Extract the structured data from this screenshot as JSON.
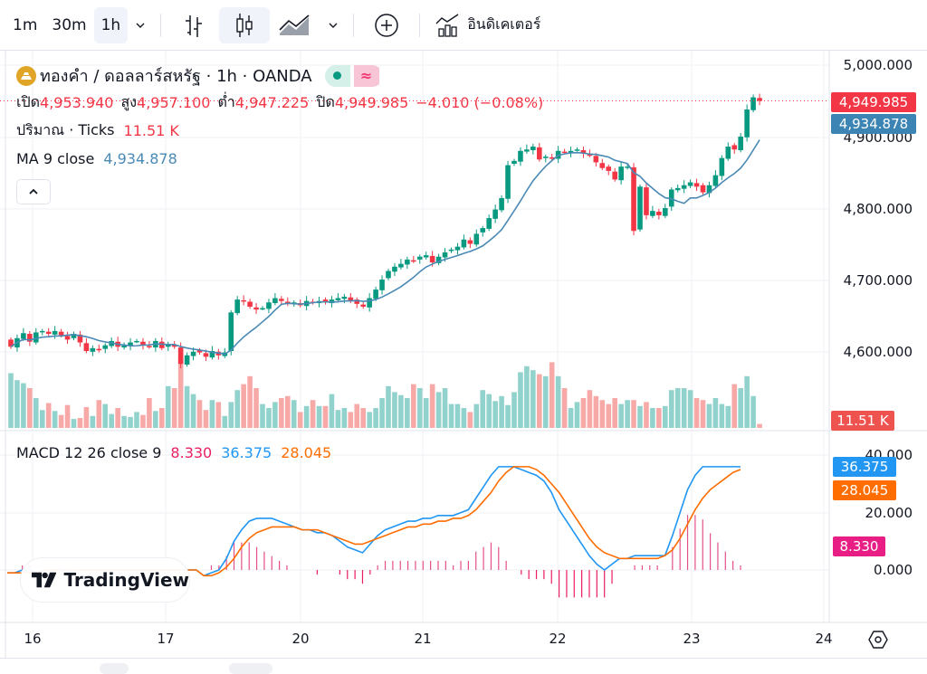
{
  "toolbar": {
    "intervals": [
      "1m",
      "30m",
      "1h"
    ],
    "active_interval": "1h",
    "indicators_label": "อินดิเคเตอร์"
  },
  "symbol": {
    "title": "ทองคำ / ดอลลาร์สหรัฐ · 1h · OANDA",
    "ohlc": {
      "open_label": "เปิด",
      "open": "4,953.940",
      "high_label": "สูง",
      "high": "4,957.100",
      "low_label": "ต่ำ",
      "low": "4,947.225",
      "close_label": "ปิด",
      "close": "4,949.985",
      "change": "−4.010 (−0.08%)"
    },
    "volume_label": "ปริมาณ · Ticks",
    "volume_value": "11.51 K",
    "ma_label": "MA 9 close",
    "ma_value": "4,934.878"
  },
  "macd": {
    "label": "MACD 12 26 close 9",
    "histogram": "8.330",
    "macd": "36.375",
    "signal": "28.045"
  },
  "price_axis": [
    "5,000.000",
    "4,900.000",
    "4,800.000",
    "4,700.000",
    "4,600.000"
  ],
  "macd_axis": [
    "40.000",
    "20.000",
    "0.000"
  ],
  "price_tags": {
    "last": "4,949.985",
    "ma": "4,934.878",
    "volume": "11.51 K",
    "macd": "36.375",
    "signal": "28.045",
    "hist": "8.330"
  },
  "time_axis": [
    "16",
    "17",
    "20",
    "21",
    "22",
    "23",
    "24"
  ],
  "branding": "TradingView",
  "colors": {
    "up": "#089981",
    "down": "#f23645",
    "vol_up": "#92d2cc",
    "vol_down": "#f7a9a7",
    "ma": "#4a8ab5",
    "macd": "#2196f3",
    "signal": "#ff6d00",
    "hist": "#e91e63"
  },
  "chart_data": {
    "type": "candlestick",
    "title": "ทองคำ / ดอลลาร์สหรัฐ · 1h · OANDA",
    "xlabel": "",
    "ylabel": "",
    "ylim": [
      4570,
      5010
    ],
    "x_ticks": [
      "16",
      "17",
      "20",
      "21",
      "22",
      "23",
      "24"
    ],
    "closes": [
      4606,
      4618,
      4625,
      4613,
      4626,
      4628,
      4624,
      4628,
      4622,
      4616,
      4624,
      4612,
      4600,
      4604,
      4601,
      4608,
      4614,
      4606,
      4608,
      4612,
      4614,
      4608,
      4606,
      4614,
      4604,
      4610,
      4606,
      4582,
      4594,
      4599,
      4598,
      4592,
      4600,
      4594,
      4598,
      4654,
      4672,
      4670,
      4662,
      4658,
      4660,
      4668,
      4674,
      4670,
      4666,
      4668,
      4664,
      4670,
      4668,
      4670,
      4668,
      4672,
      4674,
      4676,
      4670,
      4666,
      4662,
      4674,
      4686,
      4700,
      4712,
      4718,
      4722,
      4728,
      4726,
      4732,
      4734,
      4724,
      4732,
      4738,
      4742,
      4746,
      4756,
      4750,
      4764,
      4772,
      4786,
      4798,
      4814,
      4860,
      4866,
      4880,
      4882,
      4886,
      4868,
      4872,
      4870,
      4880,
      4878,
      4880,
      4882,
      4876,
      4874,
      4864,
      4856,
      4852,
      4840,
      4858,
      4858,
      4768,
      4830,
      4790,
      4796,
      4790,
      4800,
      4826,
      4828,
      4832,
      4836,
      4830,
      4822,
      4832,
      4846,
      4870,
      4886,
      4882,
      4900,
      4938,
      4955,
      4950
    ],
    "volume_pct": [
      55,
      48,
      45,
      40,
      30,
      18,
      25,
      17,
      13,
      23,
      9,
      10,
      21,
      12,
      28,
      24,
      14,
      20,
      12,
      11,
      16,
      13,
      30,
      17,
      20,
      42,
      40,
      70,
      42,
      34,
      28,
      18,
      28,
      26,
      12,
      26,
      38,
      44,
      52,
      40,
      24,
      20,
      26,
      30,
      32,
      28,
      16,
      22,
      28,
      22,
      22,
      34,
      18,
      20,
      16,
      24,
      20,
      16,
      20,
      30,
      42,
      36,
      33,
      30,
      44,
      40,
      30,
      44,
      36,
      40,
      24,
      24,
      20,
      16,
      24,
      38,
      34,
      27,
      32,
      23,
      36,
      56,
      62,
      58,
      54,
      52,
      66,
      52,
      40,
      20,
      26,
      30,
      38,
      32,
      28,
      24,
      30,
      24,
      28,
      28,
      22,
      26,
      20,
      20,
      22,
      38,
      40,
      40,
      38,
      30,
      28,
      24,
      30,
      24,
      22,
      44,
      40,
      52,
      32,
      4
    ],
    "macd_series": {
      "macd": [
        -1,
        -1,
        0,
        0,
        -1,
        0,
        0,
        0,
        -1,
        0,
        0,
        0,
        0,
        0,
        0,
        0,
        0,
        0,
        0,
        0,
        0,
        0,
        0,
        0,
        0,
        0,
        -2,
        -1,
        0,
        4,
        10,
        14,
        17,
        18,
        18,
        18,
        17,
        16,
        15,
        14,
        14,
        13,
        13,
        12,
        10,
        8,
        7,
        6,
        9,
        12,
        14,
        15,
        16,
        17,
        17,
        18,
        18,
        19,
        19,
        19,
        20,
        21,
        25,
        29,
        33,
        36,
        36,
        36,
        35,
        34,
        33,
        31,
        27,
        21,
        17,
        13,
        9,
        5,
        2,
        0,
        2,
        4,
        4,
        5,
        5,
        5,
        5,
        5,
        12,
        20,
        28,
        33,
        36,
        36,
        36,
        36,
        36,
        36
      ],
      "signal": [
        -1,
        -1,
        -1,
        -1,
        -1,
        0,
        0,
        0,
        0,
        0,
        0,
        0,
        0,
        0,
        0,
        0,
        0,
        0,
        0,
        0,
        0,
        0,
        0,
        0,
        0,
        0,
        -2,
        -2,
        -1,
        1,
        4,
        8,
        11,
        13,
        14,
        15,
        15,
        15,
        15,
        14,
        14,
        14,
        13,
        12,
        11,
        10,
        9,
        9,
        10,
        11,
        12,
        13,
        14,
        15,
        15,
        16,
        16,
        17,
        17,
        18,
        18,
        19,
        21,
        24,
        27,
        31,
        34,
        36,
        36,
        36,
        35,
        33,
        30,
        27,
        23,
        19,
        15,
        11,
        8,
        6,
        5,
        4,
        4,
        4,
        4,
        4,
        4,
        5,
        7,
        11,
        16,
        21,
        25,
        28,
        30,
        32,
        34,
        35
      ]
    }
  }
}
